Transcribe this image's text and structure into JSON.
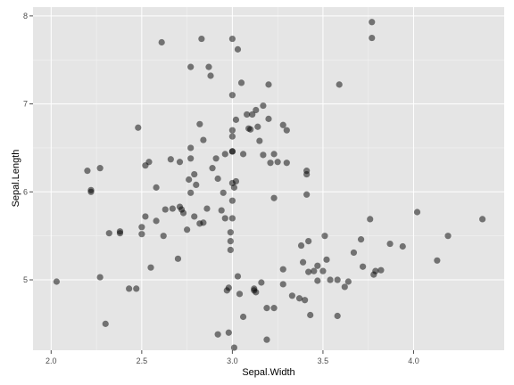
{
  "chart_data": {
    "type": "scatter",
    "xlabel": "Sepal.Width",
    "ylabel": "Sepal.Length",
    "xlim": [
      1.9,
      4.5
    ],
    "ylim": [
      4.2,
      8.1
    ],
    "xticks": [
      2.0,
      2.5,
      3.0,
      3.5,
      4.0
    ],
    "xtick_labels": [
      "2.0",
      "2.5",
      "3.0",
      "3.5",
      "4.0"
    ],
    "yticks": [
      5,
      6,
      7,
      8
    ],
    "ytick_labels": [
      "5",
      "6",
      "7",
      "8"
    ],
    "grid": true,
    "colors": {
      "panel": "#e5e5e5",
      "grid_major": "#ffffff",
      "grid_minor": "#f2f2f2",
      "point": "#000000"
    },
    "point_opacity": 0.5,
    "points": [
      [
        2.03,
        4.98
      ],
      [
        2.2,
        6.24
      ],
      [
        2.22,
        6.0
      ],
      [
        2.22,
        6.02
      ],
      [
        2.27,
        6.27
      ],
      [
        2.27,
        5.03
      ],
      [
        2.3,
        4.5
      ],
      [
        2.32,
        5.53
      ],
      [
        2.38,
        5.53
      ],
      [
        2.38,
        5.55
      ],
      [
        2.43,
        4.9
      ],
      [
        2.47,
        4.9
      ],
      [
        2.48,
        6.73
      ],
      [
        2.5,
        5.52
      ],
      [
        2.5,
        5.6
      ],
      [
        2.52,
        5.72
      ],
      [
        2.52,
        6.3
      ],
      [
        2.54,
        6.34
      ],
      [
        2.55,
        5.14
      ],
      [
        2.58,
        6.05
      ],
      [
        2.58,
        5.67
      ],
      [
        2.61,
        7.7
      ],
      [
        2.62,
        5.5
      ],
      [
        2.63,
        5.8
      ],
      [
        2.66,
        6.37
      ],
      [
        2.67,
        5.81
      ],
      [
        2.7,
        5.24
      ],
      [
        2.71,
        6.34
      ],
      [
        2.71,
        5.83
      ],
      [
        2.72,
        5.8
      ],
      [
        2.73,
        5.76
      ],
      [
        2.75,
        5.57
      ],
      [
        2.76,
        6.14
      ],
      [
        2.77,
        6.38
      ],
      [
        2.77,
        6.5
      ],
      [
        2.77,
        5.99
      ],
      [
        2.79,
        6.2
      ],
      [
        2.79,
        5.72
      ],
      [
        2.8,
        6.08
      ],
      [
        2.82,
        5.64
      ],
      [
        2.84,
        6.59
      ],
      [
        2.84,
        5.65
      ],
      [
        2.87,
        7.42
      ],
      [
        2.88,
        7.32
      ],
      [
        2.77,
        7.42
      ],
      [
        2.83,
        7.74
      ],
      [
        2.82,
        6.77
      ],
      [
        2.86,
        5.81
      ],
      [
        2.89,
        6.27
      ],
      [
        2.91,
        6.38
      ],
      [
        2.92,
        6.15
      ],
      [
        2.94,
        5.79
      ],
      [
        2.95,
        5.99
      ],
      [
        2.96,
        6.43
      ],
      [
        2.96,
        5.7
      ],
      [
        2.92,
        4.38
      ],
      [
        2.97,
        4.88
      ],
      [
        2.98,
        4.91
      ],
      [
        2.98,
        4.4
      ],
      [
        2.99,
        5.54
      ],
      [
        2.99,
        5.44
      ],
      [
        2.99,
        5.34
      ],
      [
        3.0,
        5.7
      ],
      [
        3.0,
        5.9
      ],
      [
        3.0,
        6.1
      ],
      [
        3.0,
        6.46
      ],
      [
        3.0,
        6.46
      ],
      [
        3.0,
        6.63
      ],
      [
        3.0,
        6.7
      ],
      [
        3.0,
        7.1
      ],
      [
        3.0,
        7.74
      ],
      [
        3.01,
        4.23
      ],
      [
        3.01,
        6.05
      ],
      [
        3.02,
        6.12
      ],
      [
        3.02,
        6.82
      ],
      [
        3.03,
        7.62
      ],
      [
        3.03,
        5.04
      ],
      [
        3.04,
        4.84
      ],
      [
        3.05,
        7.24
      ],
      [
        3.06,
        4.58
      ],
      [
        3.06,
        6.43
      ],
      [
        3.08,
        6.88
      ],
      [
        3.09,
        6.72
      ],
      [
        3.1,
        6.71
      ],
      [
        3.11,
        6.88
      ],
      [
        3.12,
        4.88
      ],
      [
        3.12,
        4.9
      ],
      [
        3.13,
        4.86
      ],
      [
        3.13,
        6.93
      ],
      [
        3.14,
        6.74
      ],
      [
        3.15,
        6.58
      ],
      [
        3.16,
        4.97
      ],
      [
        3.17,
        6.42
      ],
      [
        3.17,
        6.98
      ],
      [
        3.19,
        4.32
      ],
      [
        3.19,
        4.68
      ],
      [
        3.2,
        6.83
      ],
      [
        3.2,
        7.22
      ],
      [
        3.21,
        6.33
      ],
      [
        3.23,
        6.43
      ],
      [
        3.23,
        5.93
      ],
      [
        3.23,
        4.68
      ],
      [
        3.25,
        6.34
      ],
      [
        3.28,
        6.76
      ],
      [
        3.3,
        6.7
      ],
      [
        3.3,
        6.33
      ],
      [
        3.28,
        5.12
      ],
      [
        3.28,
        4.95
      ],
      [
        3.33,
        4.82
      ],
      [
        3.37,
        4.79
      ],
      [
        3.38,
        5.39
      ],
      [
        3.39,
        5.2
      ],
      [
        3.4,
        4.77
      ],
      [
        3.41,
        6.24
      ],
      [
        3.41,
        6.2
      ],
      [
        3.41,
        5.97
      ],
      [
        3.42,
        5.44
      ],
      [
        3.42,
        5.09
      ],
      [
        3.43,
        4.6
      ],
      [
        3.45,
        5.1
      ],
      [
        3.47,
        4.99
      ],
      [
        3.47,
        5.16
      ],
      [
        3.5,
        5.1
      ],
      [
        3.51,
        5.5
      ],
      [
        3.52,
        5.23
      ],
      [
        3.54,
        5.0
      ],
      [
        3.58,
        5.0
      ],
      [
        3.58,
        4.59
      ],
      [
        3.59,
        7.22
      ],
      [
        3.62,
        4.92
      ],
      [
        3.64,
        4.98
      ],
      [
        3.67,
        5.31
      ],
      [
        3.71,
        5.46
      ],
      [
        3.72,
        5.15
      ],
      [
        3.76,
        5.69
      ],
      [
        3.77,
        7.93
      ],
      [
        3.77,
        7.75
      ],
      [
        3.78,
        5.06
      ],
      [
        3.79,
        5.1
      ],
      [
        3.82,
        5.11
      ],
      [
        3.87,
        5.41
      ],
      [
        3.94,
        5.38
      ],
      [
        4.02,
        5.77
      ],
      [
        4.13,
        5.22
      ],
      [
        4.19,
        5.5
      ],
      [
        4.38,
        5.69
      ]
    ]
  }
}
